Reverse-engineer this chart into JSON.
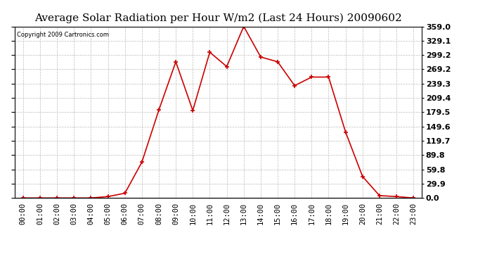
{
  "title": "Average Solar Radiation per Hour W/m2 (Last 24 Hours) 20090602",
  "copyright": "Copyright 2009 Cartronics.com",
  "hours": [
    "00:00",
    "01:00",
    "02:00",
    "03:00",
    "04:00",
    "05:00",
    "06:00",
    "07:00",
    "08:00",
    "09:00",
    "10:00",
    "11:00",
    "12:00",
    "13:00",
    "14:00",
    "15:00",
    "16:00",
    "17:00",
    "18:00",
    "19:00",
    "20:00",
    "21:00",
    "22:00",
    "23:00"
  ],
  "values": [
    0.0,
    0.0,
    0.0,
    0.0,
    0.0,
    3.0,
    10.0,
    75.0,
    184.0,
    285.0,
    183.0,
    305.0,
    275.0,
    359.0,
    295.0,
    285.0,
    235.0,
    253.0,
    253.0,
    138.0,
    45.0,
    5.0,
    3.0,
    0.0
  ],
  "yticks": [
    0.0,
    29.9,
    59.8,
    89.8,
    119.7,
    149.6,
    179.5,
    209.4,
    239.3,
    269.2,
    299.2,
    329.1,
    359.0
  ],
  "ymax": 359.0,
  "ymin": 0.0,
  "line_color": "#cc0000",
  "marker_color": "#cc0000",
  "bg_color": "#ffffff",
  "grid_color": "#bbbbbb",
  "title_fontsize": 11,
  "copyright_fontsize": 6,
  "tick_fontsize": 7.5,
  "ylabel_right_fontsize": 8
}
